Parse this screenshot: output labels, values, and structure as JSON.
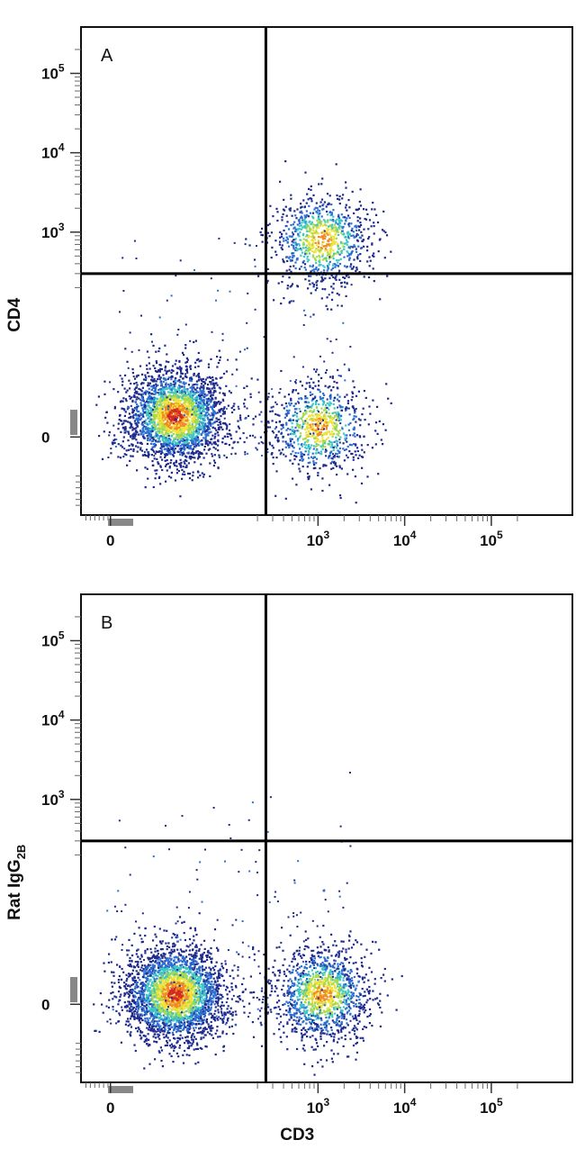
{
  "chart_data": [
    {
      "type": "scatter",
      "panel_label": "A",
      "xlabel": "",
      "ylabel": "CD4",
      "x_scale": "biexponential",
      "y_scale": "biexponential",
      "x_ticks": [
        {
          "value": 0,
          "label": "0"
        },
        {
          "value": 1000,
          "label": "10",
          "exp": "3"
        },
        {
          "value": 10000,
          "label": "10",
          "exp": "4"
        },
        {
          "value": 100000,
          "label": "10",
          "exp": "5"
        }
      ],
      "y_ticks": [
        {
          "value": 0,
          "label": "0"
        },
        {
          "value": 1000,
          "label": "10",
          "exp": "3"
        },
        {
          "value": 10000,
          "label": "10",
          "exp": "4"
        },
        {
          "value": 100000,
          "label": "10",
          "exp": "5"
        }
      ],
      "gates": {
        "x": 250,
        "y": 300
      },
      "populations": [
        {
          "name": "",
          "x_center": 60,
          "y_center": 20,
          "count": 2600
        },
        {
          "name": "",
          "x_center": 1100,
          "y_center": 800,
          "count": 900
        },
        {
          "name": "",
          "x_center": 1000,
          "y_center": 10,
          "count": 800
        }
      ],
      "grid": false,
      "density_colors": [
        "#1e2a8c",
        "#2d6fd1",
        "#3fc7c4",
        "#a8d94a",
        "#f2e23a",
        "#f08a24",
        "#d22a1f"
      ]
    },
    {
      "type": "scatter",
      "panel_label": "B",
      "xlabel": "CD3",
      "ylabel": "Rat IgG",
      "ylabel_subscript": "2B",
      "x_scale": "biexponential",
      "y_scale": "biexponential",
      "x_ticks": [
        {
          "value": 0,
          "label": "0"
        },
        {
          "value": 1000,
          "label": "10",
          "exp": "3"
        },
        {
          "value": 10000,
          "label": "10",
          "exp": "4"
        },
        {
          "value": 100000,
          "label": "10",
          "exp": "5"
        }
      ],
      "y_ticks": [
        {
          "value": 0,
          "label": "0"
        },
        {
          "value": 1000,
          "label": "10",
          "exp": "3"
        },
        {
          "value": 10000,
          "label": "10",
          "exp": "4"
        },
        {
          "value": 100000,
          "label": "10",
          "exp": "5"
        }
      ],
      "gates": {
        "x": 250,
        "y": 300
      },
      "populations": [
        {
          "name": "",
          "x_center": 60,
          "y_center": 10,
          "count": 2800
        },
        {
          "name": "",
          "x_center": 1100,
          "y_center": 10,
          "count": 1300
        }
      ],
      "grid": false,
      "density_colors": [
        "#1e2a8c",
        "#2d6fd1",
        "#3fc7c4",
        "#a8d94a",
        "#f2e23a",
        "#f08a24",
        "#d22a1f"
      ]
    }
  ]
}
